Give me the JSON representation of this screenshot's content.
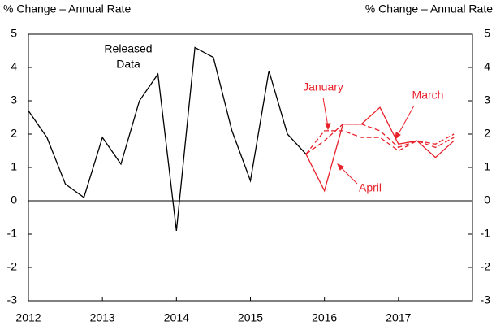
{
  "chart_data": {
    "type": "line",
    "y_label_left": "% Change – Annual Rate",
    "y_label_right": "% Change – Annual Rate",
    "annotations": [
      "Released",
      "Data",
      "January",
      "March",
      "April"
    ],
    "x": [
      2012,
      2012.25,
      2012.5,
      2012.75,
      2013,
      2013.25,
      2013.5,
      2013.75,
      2014,
      2014.25,
      2014.5,
      2014.75,
      2015,
      2015.25,
      2015.5,
      2015.75,
      2016,
      2016.25,
      2016.5,
      2016.75,
      2017,
      2017.25,
      2017.5,
      2017.75
    ],
    "series": [
      {
        "name": "Released Data",
        "color": "#000000",
        "dash": false,
        "values": [
          2.7,
          1.9,
          0.5,
          0.1,
          1.9,
          1.1,
          3.0,
          3.8,
          -0.9,
          4.6,
          4.3,
          2.1,
          0.6,
          3.9,
          2.0,
          1.4,
          null,
          null,
          null,
          null,
          null,
          null,
          null,
          null
        ]
      },
      {
        "name": "January",
        "color": "#e8202a",
        "dash": true,
        "values": [
          null,
          null,
          null,
          null,
          null,
          null,
          null,
          null,
          null,
          null,
          null,
          null,
          null,
          null,
          null,
          1.4,
          2.1,
          2.1,
          1.9,
          1.9,
          1.5,
          1.8,
          1.6,
          1.9
        ]
      },
      {
        "name": "March",
        "color": "#e8202a",
        "dash": true,
        "values": [
          null,
          null,
          null,
          null,
          null,
          null,
          null,
          null,
          null,
          null,
          null,
          null,
          null,
          null,
          null,
          1.4,
          1.8,
          2.3,
          2.3,
          2.1,
          1.6,
          1.8,
          1.7,
          2.0
        ]
      },
      {
        "name": "April",
        "color": "#e8202a",
        "dash": false,
        "values": [
          null,
          null,
          null,
          null,
          null,
          null,
          null,
          null,
          null,
          null,
          null,
          null,
          null,
          null,
          null,
          1.4,
          0.3,
          2.3,
          2.3,
          2.8,
          1.7,
          1.8,
          1.3,
          1.8
        ]
      }
    ],
    "xlim": [
      2012,
      2018
    ],
    "xticks": [
      2012,
      2013,
      2014,
      2015,
      2016,
      2017
    ],
    "ylim": [
      -3,
      5
    ],
    "yticks": [
      -3,
      -2,
      -1,
      0,
      1,
      2,
      3,
      4,
      5
    ],
    "y2lim": [
      -3,
      5
    ],
    "y2ticks": [
      -3,
      -2,
      -1,
      0,
      1,
      2,
      3,
      4,
      5
    ],
    "grid": false
  }
}
